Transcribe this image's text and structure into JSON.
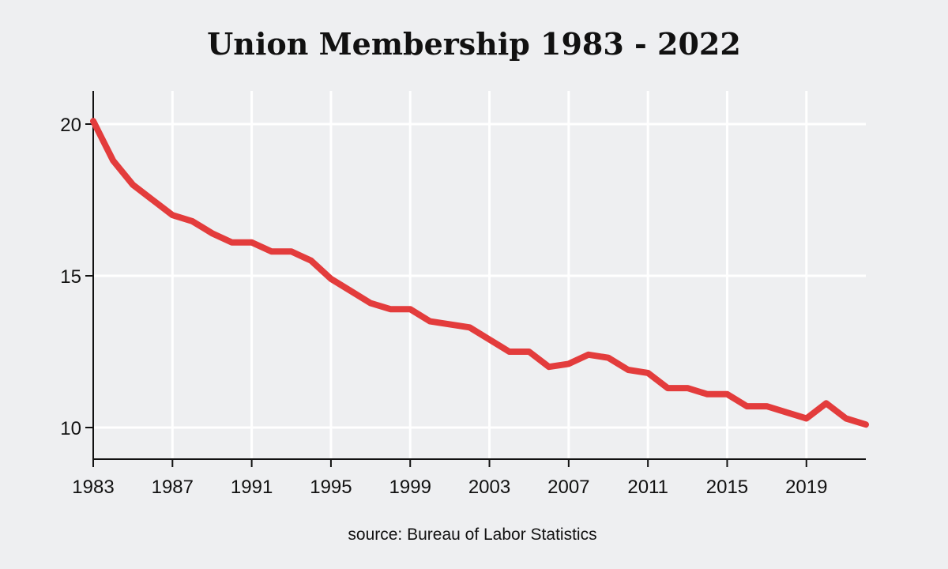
{
  "colors": {
    "background": "#eeeff1",
    "grid": "#ffffff",
    "axis": "#111111",
    "line": "#e33c3c",
    "text": "#111111"
  },
  "chart_data": {
    "type": "line",
    "title": "Union Membership 1983 - 2022",
    "source": "source: Bureau of Labor Statistics",
    "xlabel": "",
    "ylabel": "",
    "xlim": [
      1983,
      2022
    ],
    "ylim": [
      9,
      21.2
    ],
    "grid": true,
    "legend": "none",
    "x_ticks": [
      1983,
      1987,
      1991,
      1995,
      1999,
      2003,
      2007,
      2011,
      2015,
      2019
    ],
    "x_tick_labels": [
      "1983",
      "1987",
      "1991",
      "1995",
      "1999",
      "2003",
      "2007",
      "2011",
      "2015",
      "2019"
    ],
    "y_ticks": [
      10,
      15,
      20
    ],
    "y_tick_labels": [
      "10",
      "15",
      "20"
    ],
    "series": [
      {
        "x": [
          1983,
          1984,
          1985,
          1986,
          1987,
          1988,
          1989,
          1990,
          1991,
          1992,
          1993,
          1994,
          1995,
          1996,
          1997,
          1998,
          1999,
          2000,
          2001,
          2002,
          2003,
          2004,
          2005,
          2006,
          2007,
          2008,
          2009,
          2010,
          2011,
          2012,
          2013,
          2014,
          2015,
          2016,
          2017,
          2018,
          2019,
          2020,
          2021,
          2022
        ],
        "values": [
          20.1,
          18.8,
          18.0,
          17.5,
          17.0,
          16.8,
          16.4,
          16.1,
          16.1,
          15.8,
          15.8,
          15.5,
          14.9,
          14.5,
          14.1,
          13.9,
          13.9,
          13.5,
          13.4,
          13.3,
          12.9,
          12.5,
          12.5,
          12.0,
          12.1,
          12.4,
          12.3,
          11.9,
          11.8,
          11.3,
          11.3,
          11.1,
          11.1,
          10.7,
          10.7,
          10.5,
          10.3,
          10.8,
          10.3,
          10.1
        ]
      }
    ]
  }
}
